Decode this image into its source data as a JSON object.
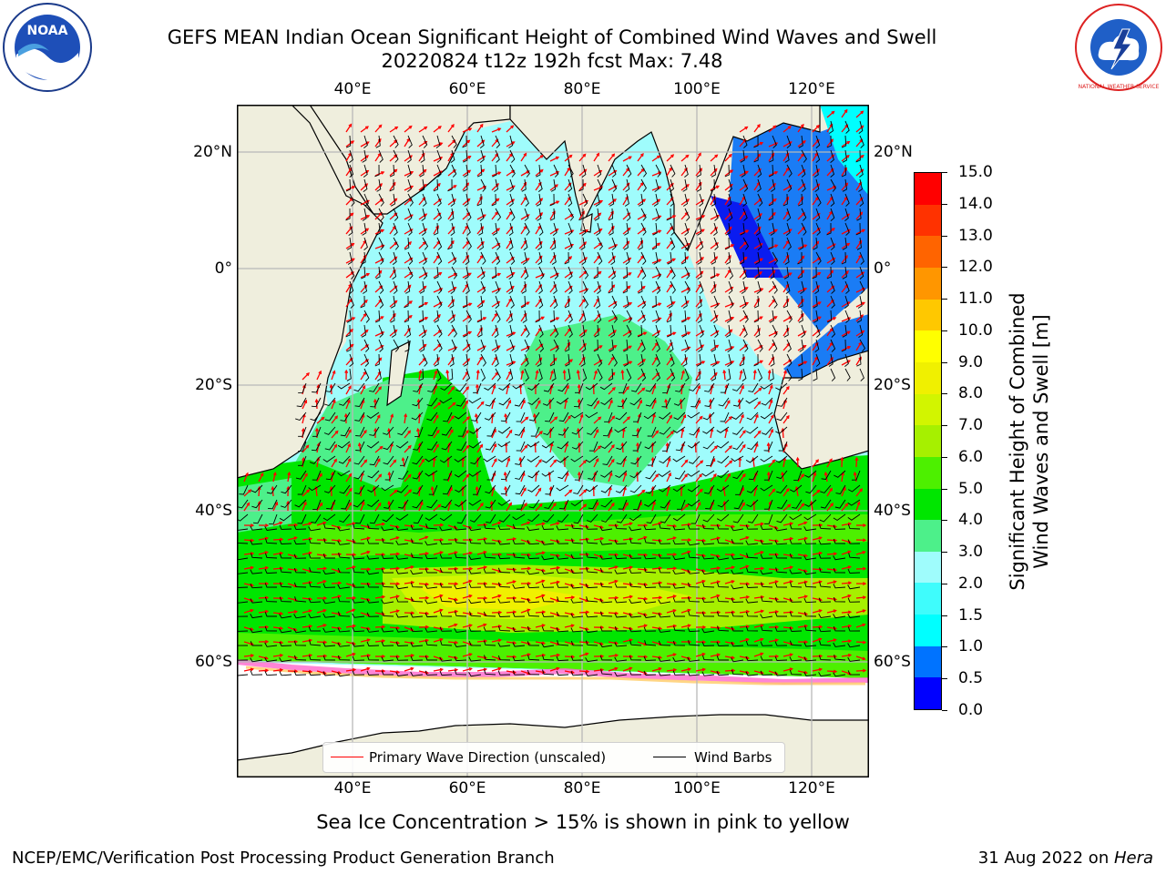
{
  "title": {
    "line1": "GEFS MEAN Indian Ocean Significant Height of Combined Wind Waves and Swell",
    "line2": "20220824 t12z 192h fcst   Max: 7.48"
  },
  "logos": {
    "left": "NOAA",
    "right": "NATIONAL WEATHER SERVICE"
  },
  "map": {
    "lon_ticks": [
      "40°E",
      "60°E",
      "80°E",
      "100°E",
      "120°E"
    ],
    "lat_ticks": [
      "20°N",
      "0°",
      "20°S",
      "40°S",
      "60°S"
    ]
  },
  "colorbar": {
    "title_line1": "Significant Height of Combined",
    "title_line2": "Wind Waves and Swell [m]",
    "labels": [
      "0.0",
      "0.5",
      "1.0",
      "1.5",
      "2.0",
      "3.0",
      "4.0",
      "5.0",
      "6.0",
      "7.0",
      "8.0",
      "9.0",
      "10.0",
      "11.0",
      "12.0",
      "13.0",
      "14.0",
      "15.0"
    ],
    "colors": [
      "#0000ff",
      "#0073ff",
      "#00ffff",
      "#3ffcfc",
      "#9ffcfc",
      "#4df08a",
      "#00e600",
      "#4df000",
      "#a6f000",
      "#d2f500",
      "#f0f000",
      "#ffff00",
      "#ffc800",
      "#ff9600",
      "#ff6400",
      "#ff3200",
      "#ff0000"
    ]
  },
  "legend": {
    "primary": "Primary Wave Direction (unscaled)",
    "barbs": "Wind Barbs"
  },
  "note": "Sea Ice Concentration > 15% is shown in pink to yellow",
  "footer": {
    "left": "NCEP/EMC/Verification Post Processing Product Generation Branch",
    "date": "31 Aug 2022 on ",
    "host": "Hera"
  }
}
